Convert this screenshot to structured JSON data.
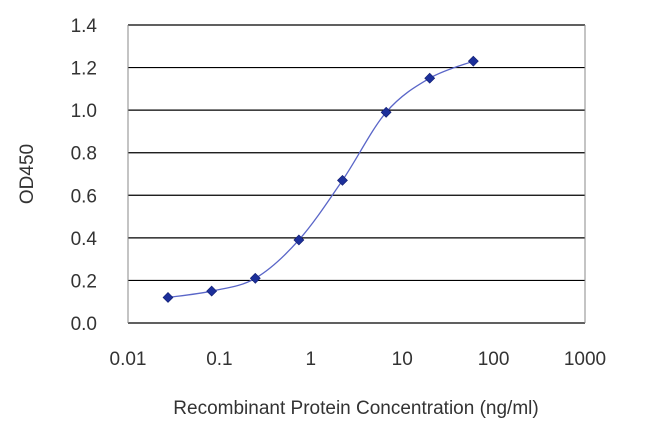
{
  "chart_data": {
    "type": "scatter",
    "title": "",
    "xlabel": "Recombinant Protein Concentration (ng/ml)",
    "ylabel": "OD450",
    "xscale": "log",
    "xlim": [
      0.01,
      1000
    ],
    "ylim": [
      0.0,
      1.4
    ],
    "x_ticks": [
      "0.01",
      "0.1",
      "1",
      "10",
      "100",
      "1000"
    ],
    "y_ticks": [
      "0.0",
      "0.2",
      "0.4",
      "0.6",
      "0.8",
      "1.0",
      "1.2",
      "1.4"
    ],
    "grid": "horizontal",
    "fit_curve": "sigmoidal",
    "series": [
      {
        "x": [
          0.0274,
          0.0823,
          0.247,
          0.741,
          2.22,
          6.67,
          20.0,
          60.0
        ],
        "y": [
          0.12,
          0.15,
          0.21,
          0.39,
          0.67,
          0.99,
          1.15,
          1.23
        ]
      }
    ],
    "colors": {
      "series": "#1c2f9a",
      "grid": "#000000",
      "axis_text": "#333333"
    }
  }
}
